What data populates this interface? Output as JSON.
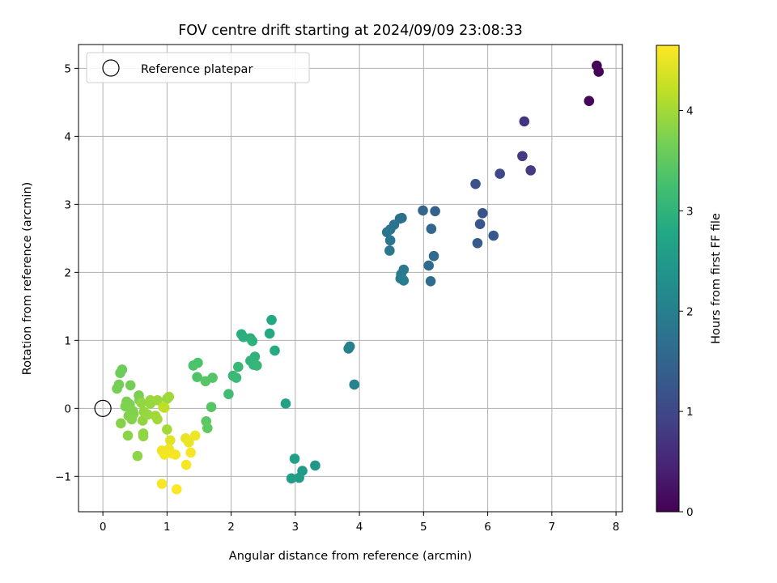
{
  "chart_data": {
    "type": "scatter",
    "title": "FOV centre drift starting at 2024/09/09 23:08:33",
    "xlabel": "Angular distance from reference (arcmin)",
    "ylabel": "Rotation from reference (arcmin)",
    "xlim": [
      -0.38,
      8.1
    ],
    "ylim": [
      -1.52,
      5.35
    ],
    "x_ticks": [
      0,
      1,
      2,
      3,
      4,
      5,
      6,
      7,
      8
    ],
    "y_ticks": [
      -1,
      0,
      1,
      2,
      3,
      4,
      5
    ],
    "grid": true,
    "legend": {
      "position": "upper-left",
      "entries": [
        "Reference platepar"
      ]
    },
    "reference_point": {
      "x": 0,
      "y": 0,
      "label": "Reference platepar"
    },
    "colorbar": {
      "label": "Hours from first FF file",
      "range": [
        0,
        4.65
      ],
      "ticks": [
        0,
        1,
        2,
        3,
        4
      ],
      "colormap": "viridis"
    },
    "points": [
      {
        "x": 7.7,
        "y": 5.04,
        "h": 0.02
      },
      {
        "x": 7.73,
        "y": 4.95,
        "h": 0.05
      },
      {
        "x": 7.58,
        "y": 4.52,
        "h": 0.08
      },
      {
        "x": 6.57,
        "y": 4.22,
        "h": 0.7
      },
      {
        "x": 6.54,
        "y": 3.71,
        "h": 0.78
      },
      {
        "x": 6.67,
        "y": 3.5,
        "h": 0.82
      },
      {
        "x": 6.19,
        "y": 3.45,
        "h": 1.0
      },
      {
        "x": 5.81,
        "y": 3.3,
        "h": 1.15
      },
      {
        "x": 5.92,
        "y": 2.87,
        "h": 1.2
      },
      {
        "x": 5.88,
        "y": 2.71,
        "h": 1.25
      },
      {
        "x": 6.09,
        "y": 2.54,
        "h": 1.3
      },
      {
        "x": 5.84,
        "y": 2.43,
        "h": 1.35
      },
      {
        "x": 5.18,
        "y": 2.9,
        "h": 1.45
      },
      {
        "x": 4.99,
        "y": 2.91,
        "h": 1.5
      },
      {
        "x": 5.12,
        "y": 2.64,
        "h": 1.55
      },
      {
        "x": 5.16,
        "y": 2.24,
        "h": 1.6
      },
      {
        "x": 5.08,
        "y": 2.1,
        "h": 1.62
      },
      {
        "x": 5.11,
        "y": 1.87,
        "h": 1.65
      },
      {
        "x": 4.66,
        "y": 2.8,
        "h": 1.7
      },
      {
        "x": 4.63,
        "y": 2.79,
        "h": 1.72
      },
      {
        "x": 4.54,
        "y": 2.7,
        "h": 1.75
      },
      {
        "x": 4.48,
        "y": 2.63,
        "h": 1.78
      },
      {
        "x": 4.43,
        "y": 2.59,
        "h": 1.8
      },
      {
        "x": 4.48,
        "y": 2.47,
        "h": 1.82
      },
      {
        "x": 4.47,
        "y": 2.32,
        "h": 1.85
      },
      {
        "x": 4.69,
        "y": 2.04,
        "h": 1.88
      },
      {
        "x": 4.65,
        "y": 1.97,
        "h": 1.9
      },
      {
        "x": 4.64,
        "y": 1.91,
        "h": 1.92
      },
      {
        "x": 4.69,
        "y": 1.88,
        "h": 1.95
      },
      {
        "x": 3.85,
        "y": 0.91,
        "h": 2.0
      },
      {
        "x": 3.83,
        "y": 0.88,
        "h": 2.02
      },
      {
        "x": 3.92,
        "y": 0.35,
        "h": 2.05
      },
      {
        "x": 3.31,
        "y": -0.84,
        "h": 2.45
      },
      {
        "x": 3.11,
        "y": -0.92,
        "h": 2.5
      },
      {
        "x": 3.06,
        "y": -1.02,
        "h": 2.55
      },
      {
        "x": 2.94,
        "y": -1.03,
        "h": 2.58
      },
      {
        "x": 2.99,
        "y": -0.74,
        "h": 2.6
      },
      {
        "x": 2.85,
        "y": 0.07,
        "h": 2.65
      },
      {
        "x": 2.63,
        "y": 1.3,
        "h": 2.8
      },
      {
        "x": 2.6,
        "y": 1.1,
        "h": 2.82
      },
      {
        "x": 2.68,
        "y": 0.85,
        "h": 2.85
      },
      {
        "x": 2.16,
        "y": 1.09,
        "h": 2.9
      },
      {
        "x": 2.19,
        "y": 1.05,
        "h": 2.92
      },
      {
        "x": 2.3,
        "y": 1.03,
        "h": 2.95
      },
      {
        "x": 2.33,
        "y": 0.99,
        "h": 2.97
      },
      {
        "x": 2.37,
        "y": 0.76,
        "h": 3.0
      },
      {
        "x": 2.3,
        "y": 0.7,
        "h": 3.02
      },
      {
        "x": 2.35,
        "y": 0.64,
        "h": 3.05
      },
      {
        "x": 2.4,
        "y": 0.63,
        "h": 3.07
      },
      {
        "x": 2.11,
        "y": 0.61,
        "h": 3.1
      },
      {
        "x": 2.03,
        "y": 0.48,
        "h": 3.12
      },
      {
        "x": 2.08,
        "y": 0.45,
        "h": 3.15
      },
      {
        "x": 1.96,
        "y": 0.21,
        "h": 3.18
      },
      {
        "x": 1.48,
        "y": 0.67,
        "h": 3.3
      },
      {
        "x": 1.41,
        "y": 0.63,
        "h": 3.32
      },
      {
        "x": 1.47,
        "y": 0.46,
        "h": 3.35
      },
      {
        "x": 1.71,
        "y": 0.45,
        "h": 3.38
      },
      {
        "x": 1.6,
        "y": 0.4,
        "h": 3.4
      },
      {
        "x": 1.69,
        "y": 0.02,
        "h": 3.42
      },
      {
        "x": 1.61,
        "y": -0.19,
        "h": 3.45
      },
      {
        "x": 1.63,
        "y": -0.29,
        "h": 3.48
      },
      {
        "x": 0.3,
        "y": 0.57,
        "h": 3.6
      },
      {
        "x": 0.27,
        "y": 0.52,
        "h": 3.62
      },
      {
        "x": 0.43,
        "y": 0.34,
        "h": 3.65
      },
      {
        "x": 0.25,
        "y": 0.35,
        "h": 3.66
      },
      {
        "x": 0.22,
        "y": 0.29,
        "h": 3.68
      },
      {
        "x": 0.56,
        "y": 0.19,
        "h": 3.7
      },
      {
        "x": 0.57,
        "y": 0.12,
        "h": 3.71
      },
      {
        "x": 0.37,
        "y": 0.1,
        "h": 3.72
      },
      {
        "x": 0.42,
        "y": 0.06,
        "h": 3.73
      },
      {
        "x": 0.35,
        "y": 0.03,
        "h": 3.74
      },
      {
        "x": 0.47,
        "y": -0.04,
        "h": 3.75
      },
      {
        "x": 0.48,
        "y": -0.08,
        "h": 3.76
      },
      {
        "x": 0.4,
        "y": -0.11,
        "h": 3.77
      },
      {
        "x": 0.45,
        "y": -0.16,
        "h": 3.78
      },
      {
        "x": 0.28,
        "y": -0.22,
        "h": 3.8
      },
      {
        "x": 0.39,
        "y": -0.4,
        "h": 3.82
      },
      {
        "x": 0.54,
        "y": -0.7,
        "h": 3.84
      },
      {
        "x": 0.63,
        "y": -0.37,
        "h": 3.86
      },
      {
        "x": 0.63,
        "y": -0.41,
        "h": 3.87
      },
      {
        "x": 0.62,
        "y": -0.18,
        "h": 3.88
      },
      {
        "x": 0.6,
        "y": 0.08,
        "h": 3.89
      },
      {
        "x": 0.64,
        "y": -0.05,
        "h": 3.9
      },
      {
        "x": 0.74,
        "y": 0.07,
        "h": 3.91
      },
      {
        "x": 0.7,
        "y": -0.09,
        "h": 3.92
      },
      {
        "x": 0.74,
        "y": 0.12,
        "h": 3.93
      },
      {
        "x": 0.85,
        "y": 0.12,
        "h": 3.95
      },
      {
        "x": 1.0,
        "y": 0.14,
        "h": 3.96
      },
      {
        "x": 1.03,
        "y": 0.17,
        "h": 3.97
      },
      {
        "x": 0.82,
        "y": -0.11,
        "h": 3.98
      },
      {
        "x": 0.85,
        "y": -0.16,
        "h": 3.99
      },
      {
        "x": 1.0,
        "y": -0.31,
        "h": 4.0
      },
      {
        "x": 0.94,
        "y": 0.02,
        "h": 4.15
      },
      {
        "x": 0.96,
        "y": 0.01,
        "h": 4.2
      },
      {
        "x": 1.05,
        "y": -0.47,
        "h": 4.45
      },
      {
        "x": 1.29,
        "y": -0.44,
        "h": 4.5
      },
      {
        "x": 1.34,
        "y": -0.5,
        "h": 4.52
      },
      {
        "x": 1.44,
        "y": -0.4,
        "h": 4.54
      },
      {
        "x": 0.92,
        "y": -0.62,
        "h": 4.55
      },
      {
        "x": 1.03,
        "y": -0.6,
        "h": 4.56
      },
      {
        "x": 1.07,
        "y": -0.66,
        "h": 4.57
      },
      {
        "x": 0.96,
        "y": -0.68,
        "h": 4.58
      },
      {
        "x": 1.13,
        "y": -0.68,
        "h": 4.59
      },
      {
        "x": 1.37,
        "y": -0.65,
        "h": 4.6
      },
      {
        "x": 1.3,
        "y": -0.83,
        "h": 4.61
      },
      {
        "x": 0.92,
        "y": -1.11,
        "h": 4.62
      },
      {
        "x": 1.15,
        "y": -1.19,
        "h": 4.63
      }
    ]
  }
}
